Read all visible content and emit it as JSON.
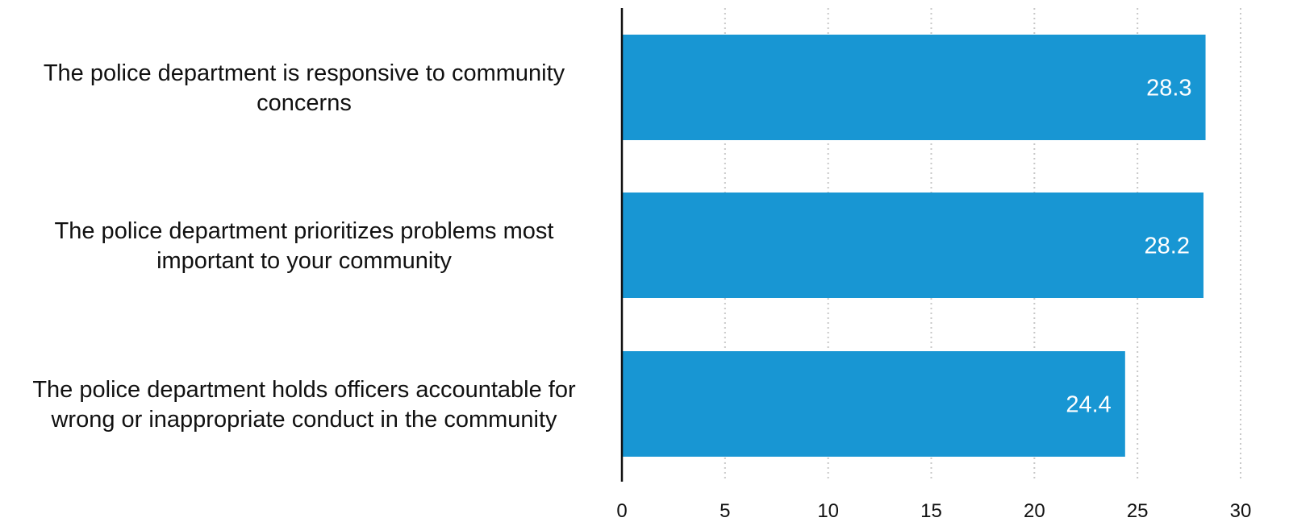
{
  "chart_data": {
    "type": "bar",
    "orientation": "horizontal",
    "categories": [
      [
        "The police department is responsive to community",
        "concerns"
      ],
      [
        "The police department prioritizes problems most",
        "important to your community"
      ],
      [
        "The police department holds officers accountable for",
        "wrong or inappropriate conduct in the community"
      ]
    ],
    "values": [
      28.3,
      28.2,
      24.4
    ],
    "data_labels": [
      "28.3",
      "28.2",
      "24.4"
    ],
    "xlim": [
      0,
      30
    ],
    "x_ticks": [
      0,
      5,
      10,
      15,
      20,
      25,
      30
    ],
    "x_tick_labels": [
      "0",
      "5",
      "10",
      "15",
      "20",
      "25",
      "30"
    ],
    "grid": "vertical dotted",
    "bar_color": "#1896d3",
    "gridline_color": "#c8c8c8",
    "axis_color": "#111111"
  }
}
